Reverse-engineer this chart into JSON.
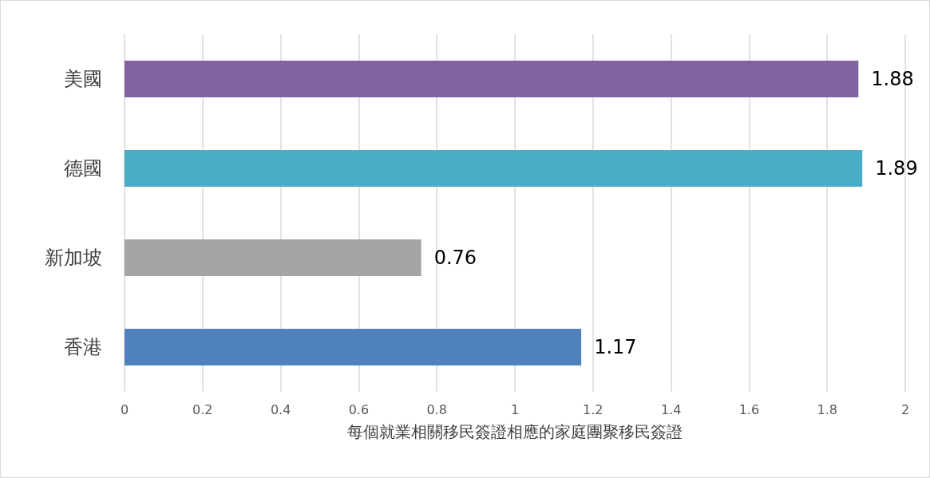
{
  "chart_data": {
    "type": "bar",
    "orientation": "horizontal",
    "xlabel": "每個就業相關移民簽證相應的家庭團聚移民簽證",
    "categories": [
      "美國",
      "德國",
      "新加坡",
      "香港"
    ],
    "values": [
      1.88,
      1.89,
      0.76,
      1.17
    ],
    "colors": [
      "#8064a2",
      "#4bacc6",
      "#a5a5a5",
      "#4f81bd"
    ],
    "xlim": [
      0,
      2
    ],
    "xticks": [
      0,
      0.2,
      0.4,
      0.6,
      0.8,
      1,
      1.2,
      1.4,
      1.6,
      1.8,
      2
    ],
    "grid": "x",
    "data_labels": true
  }
}
